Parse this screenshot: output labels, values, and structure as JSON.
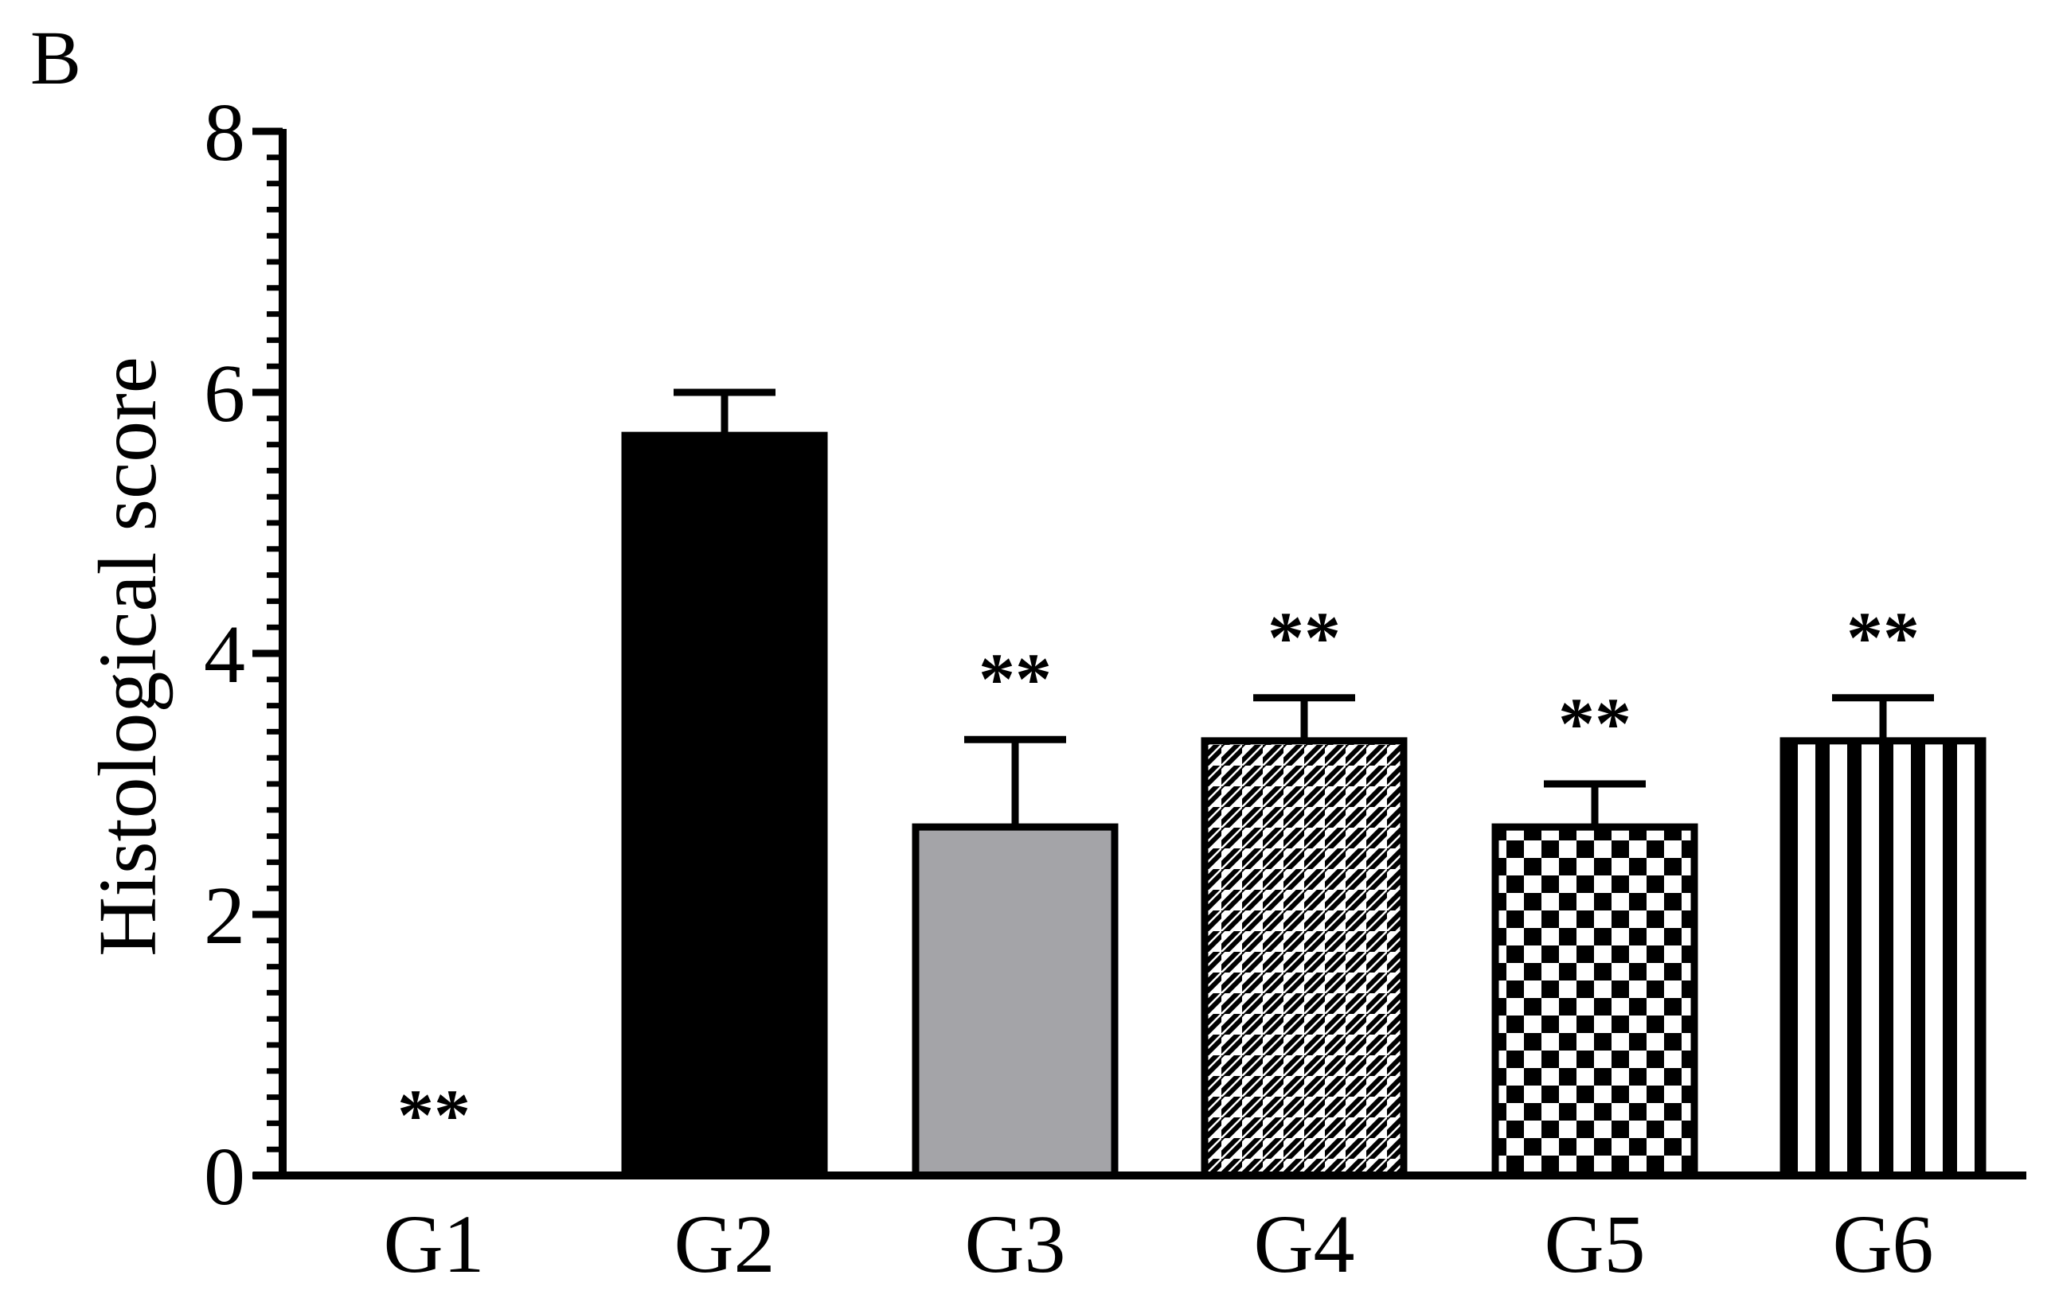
{
  "panel_label": "B",
  "chart_data": {
    "type": "bar",
    "title": "",
    "xlabel": "",
    "ylabel": "Histological score",
    "ylim": [
      0,
      8
    ],
    "yticks": [
      0,
      2,
      4,
      6,
      8
    ],
    "minor_tick_step": 0.2,
    "grid": false,
    "legend": "none",
    "categories": [
      "G1",
      "G2",
      "G3",
      "G4",
      "G5",
      "G6"
    ],
    "values": [
      0,
      5.67,
      2.67,
      3.33,
      2.67,
      3.33
    ],
    "error_upper": [
      0,
      0.33,
      0.67,
      0.33,
      0.33,
      0.33
    ],
    "significance": [
      "**",
      "",
      "**",
      "**",
      "**",
      "**"
    ],
    "bar_patterns": [
      "none",
      "solid-black",
      "solid-gray",
      "diagonal-hatch",
      "checkerboard",
      "vertical-stripes"
    ],
    "colors": {
      "black": "#000000",
      "gray": "#a4a4a8",
      "white": "#ffffff"
    }
  }
}
